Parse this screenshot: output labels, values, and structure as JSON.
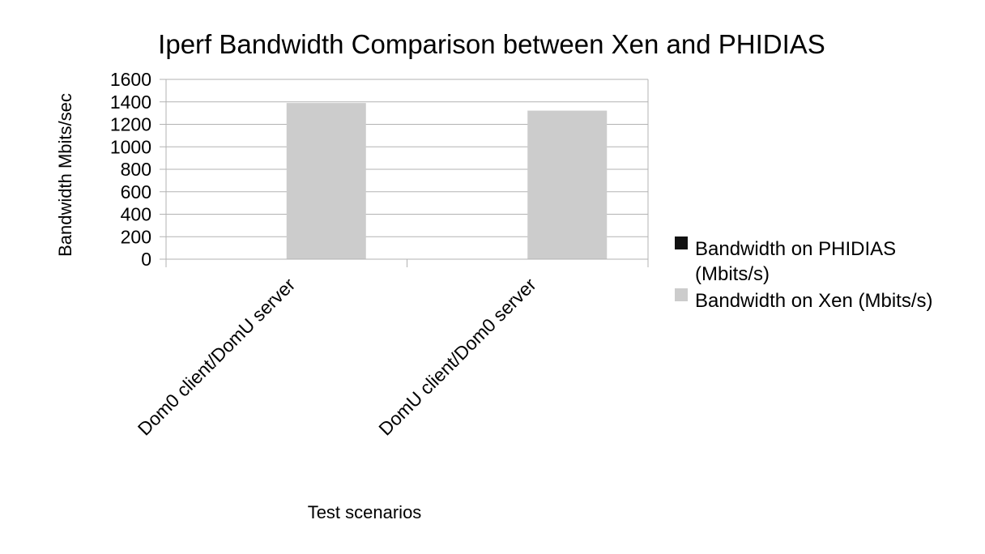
{
  "chart_data": {
    "type": "bar",
    "title": "Iperf Bandwidth Comparison between Xen and PHIDIAS",
    "xlabel": "Test scenarios",
    "ylabel": "Bandwidth Mbits/sec",
    "categories": [
      "Dom0 client/DomU server",
      "DomU client/Dom0 server"
    ],
    "series": [
      {
        "name": "Bandwidth on PHIDIAS (Mbits/s)",
        "values": [
          0,
          2
        ],
        "color": "#111111"
      },
      {
        "name": "Bandwidth on Xen (Mbits/s)",
        "values": [
          1390,
          1322
        ],
        "color": "#cccccc"
      }
    ],
    "ylim": [
      0,
      1600
    ],
    "yticks": [
      0,
      200,
      400,
      600,
      800,
      1000,
      1200,
      1400,
      1600
    ],
    "grid": true,
    "legend_position": "right"
  }
}
